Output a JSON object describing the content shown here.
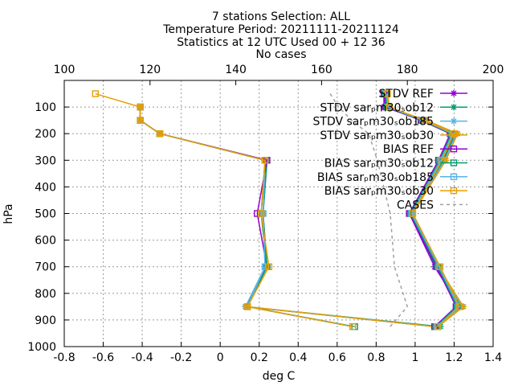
{
  "title_lines": [
    "7 stations Selection: ALL",
    "Temperature  Period: 20211111-20211124",
    "Statistics at 12 UTC  Used 00 + 12 36",
    "No cases"
  ],
  "chart_data": {
    "type": "line",
    "xlabel": "deg C",
    "ylabel": "hPa",
    "x_bottom": {
      "range": [
        -0.8,
        1.4
      ],
      "ticks": [
        "-0.8",
        "-0.6",
        "-0.4",
        "-0.2",
        "0",
        "0.2",
        "0.4",
        "0.6",
        "0.8",
        "1",
        "1.2",
        "1.4"
      ]
    },
    "x_top": {
      "range": [
        100,
        200
      ],
      "ticks": [
        "100",
        "120",
        "140",
        "160",
        "180",
        "200"
      ]
    },
    "y": {
      "range": [
        1000,
        0
      ],
      "inverted": true,
      "ticks": [
        "100",
        "200",
        "300",
        "400",
        "500",
        "600",
        "700",
        "800",
        "900",
        "1000"
      ]
    },
    "grid": true,
    "legend_position": "top-right",
    "levels": [
      50,
      100,
      150,
      200,
      300,
      500,
      700,
      850,
      925
    ],
    "series": [
      {
        "name": "STDV REF",
        "kind": "stdv",
        "color": "#9400d3",
        "marker": "star",
        "values": [
          null,
          -0.41,
          -0.41,
          -0.31,
          0.24,
          0.22,
          0.24,
          0.13,
          1.1
        ]
      },
      {
        "name": "STDV sar_pm30_sob12",
        "kind": "stdv",
        "color": "#009e73",
        "marker": "star",
        "values": [
          null,
          -0.41,
          -0.41,
          -0.31,
          0.24,
          0.22,
          0.24,
          0.13,
          1.13
        ]
      },
      {
        "name": "STDV sar_pm30_sob185",
        "kind": "stdv",
        "color": "#56b4e9",
        "marker": "star",
        "values": [
          null,
          -0.41,
          -0.41,
          -0.31,
          0.23,
          0.22,
          0.23,
          0.13,
          1.1
        ]
      },
      {
        "name": "STDV sar_pm30_sob30",
        "kind": "stdv",
        "color": "#e69f00",
        "marker": "star",
        "values": [
          null,
          -0.41,
          -0.41,
          -0.31,
          0.23,
          0.21,
          0.24,
          0.14,
          1.1
        ]
      },
      {
        "name": "BIAS REF",
        "kind": "bias",
        "color": "#9400d3",
        "marker": "square",
        "values": [
          null,
          -0.41,
          -0.41,
          -0.31,
          0.24,
          0.19,
          0.24,
          0.14,
          0.68
        ]
      },
      {
        "name": "BIAS sar_pm30_sob12",
        "kind": "bias",
        "color": "#009e73",
        "marker": "square",
        "values": [
          null,
          -0.41,
          -0.41,
          -0.31,
          0.23,
          0.21,
          0.24,
          0.14,
          0.69
        ]
      },
      {
        "name": "BIAS sar_pm30_sob185",
        "kind": "bias",
        "color": "#56b4e9",
        "marker": "square",
        "values": [
          null,
          -0.41,
          -0.41,
          -0.31,
          0.23,
          0.22,
          0.23,
          0.14,
          0.68
        ]
      },
      {
        "name": "BIAS sar_pm30_sob30",
        "kind": "bias",
        "color": "#e69f00",
        "marker": "square",
        "values": [
          -0.64,
          -0.41,
          -0.41,
          -0.31,
          0.23,
          0.21,
          0.25,
          0.14,
          0.68
        ]
      },
      {
        "name": "CASES",
        "kind": "cases",
        "color": "#a0a0a0",
        "marker": "none",
        "axis": "top",
        "values": [
          162,
          164,
          167,
          171,
          173,
          176,
          177,
          180,
          176
        ]
      }
    ],
    "right_cluster_note_values": {
      "stdv_right": [
        0.84,
        0.84,
        1.04,
        1.2,
        1.14,
        0.97,
        1.1,
        1.23,
        1.1
      ],
      "bias_right": [
        0.84,
        0.85,
        1.03,
        1.18,
        1.12,
        0.97,
        1.11,
        1.21,
        1.1
      ]
    }
  }
}
